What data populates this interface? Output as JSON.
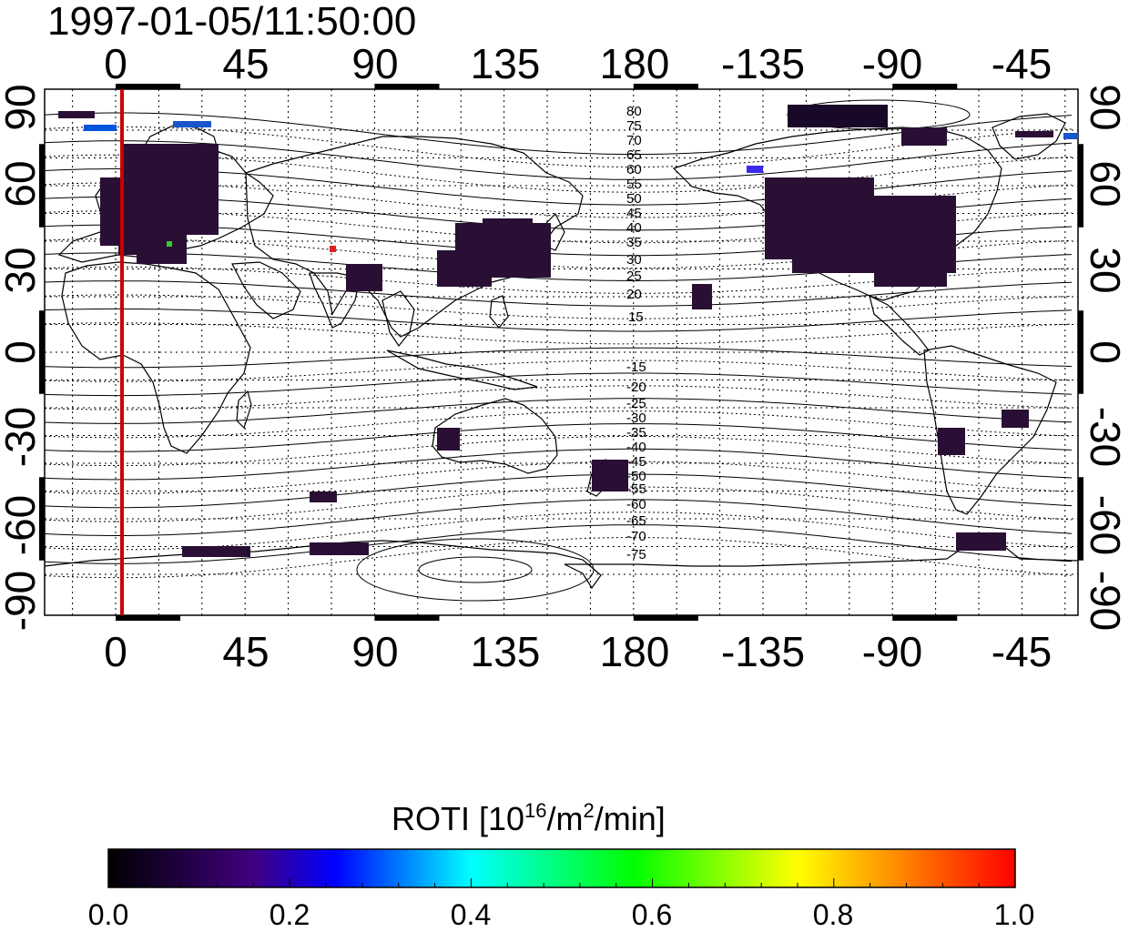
{
  "timestamp": "1997-01-05/11:50:00",
  "map": {
    "lon_labels": [
      "0",
      "45",
      "90",
      "135",
      "180",
      "-135",
      "-90",
      "-45"
    ],
    "lat_labels": [
      "90",
      "60",
      "30",
      "0",
      "-30",
      "-60",
      "-90"
    ],
    "magnetic_lat_labels_north": [
      "80",
      "75",
      "70",
      "65",
      "60",
      "55",
      "50",
      "45",
      "40",
      "35",
      "30",
      "25",
      "20",
      "15"
    ],
    "magnetic_lat_labels_south": [
      "-15",
      "-20",
      "-25",
      "-30",
      "-35",
      "-40",
      "-45",
      "-50",
      "-55",
      "-60",
      "-65",
      "-70",
      "-75"
    ],
    "terminator_longitude": 2,
    "colors": {
      "terminator": "#cc0000",
      "frame": "#000000"
    }
  },
  "colorbar": {
    "title_main": "ROTI  [10",
    "title_sup1": "16",
    "title_mid": "/m",
    "title_sup2": "2",
    "title_end": "/min]",
    "tick_labels": [
      "0.0",
      "0.2",
      "0.4",
      "0.6",
      "0.8",
      "1.0"
    ],
    "range": [
      0.0,
      1.0
    ],
    "colormap": [
      "#000000",
      "#400080",
      "#0000ff",
      "#00ffff",
      "#00ff00",
      "#ffff00",
      "#ff0000"
    ]
  }
}
